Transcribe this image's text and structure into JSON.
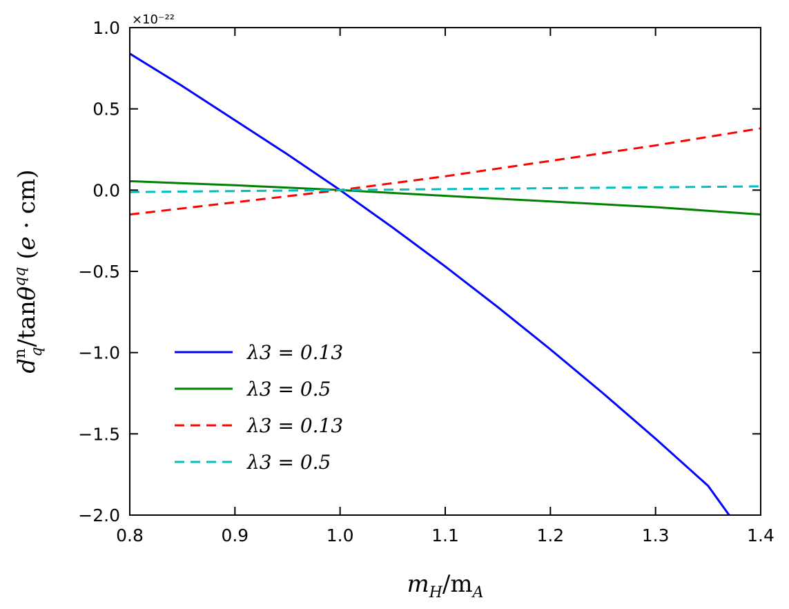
{
  "chart_data": {
    "type": "line",
    "xlabel": "m_H/m_A",
    "ylabel": "d_q^n/tanθ^qq (e·cm)",
    "y_multiplier": "×10⁻²²",
    "xlim": [
      0.8,
      1.4
    ],
    "ylim": [
      -2.0,
      1.0
    ],
    "x_ticks": [
      "0.8",
      "0.9",
      "1.0",
      "1.1",
      "1.2",
      "1.3",
      "1.4"
    ],
    "y_ticks": [
      "1.0",
      "0.5",
      "0.0",
      "−0.5",
      "−1.0",
      "−1.5",
      "−2.0"
    ],
    "grid": false,
    "legend_position": "lower-left",
    "series": [
      {
        "name": "λ3 = 0.13",
        "color": "#0000ff",
        "style": "solid",
        "x": [
          0.8,
          0.85,
          0.9,
          0.95,
          1.0,
          1.05,
          1.1,
          1.15,
          1.2,
          1.25,
          1.3,
          1.35,
          1.37
        ],
        "y": [
          0.84,
          0.64,
          0.43,
          0.22,
          0.0,
          -0.23,
          -0.47,
          -0.72,
          -0.98,
          -1.25,
          -1.53,
          -1.82,
          -2.0
        ]
      },
      {
        "name": "λ3 = 0.5",
        "color": "#008000",
        "style": "solid",
        "x": [
          0.8,
          0.9,
          1.0,
          1.1,
          1.2,
          1.3,
          1.4
        ],
        "y": [
          0.055,
          0.03,
          0.0,
          -0.035,
          -0.07,
          -0.105,
          -0.15
        ]
      },
      {
        "name": "λ3 = 0.13",
        "color": "#ff0000",
        "style": "dashed",
        "x": [
          0.8,
          0.9,
          1.0,
          1.1,
          1.2,
          1.3,
          1.4
        ],
        "y": [
          -0.15,
          -0.075,
          0.0,
          0.085,
          0.18,
          0.275,
          0.38
        ]
      },
      {
        "name": "λ3 = 0.5",
        "color": "#00bfbf",
        "style": "dashed",
        "x": [
          0.8,
          0.9,
          1.0,
          1.1,
          1.2,
          1.3,
          1.4
        ],
        "y": [
          -0.012,
          -0.006,
          0.0,
          0.006,
          0.012,
          0.017,
          0.023
        ]
      }
    ]
  }
}
